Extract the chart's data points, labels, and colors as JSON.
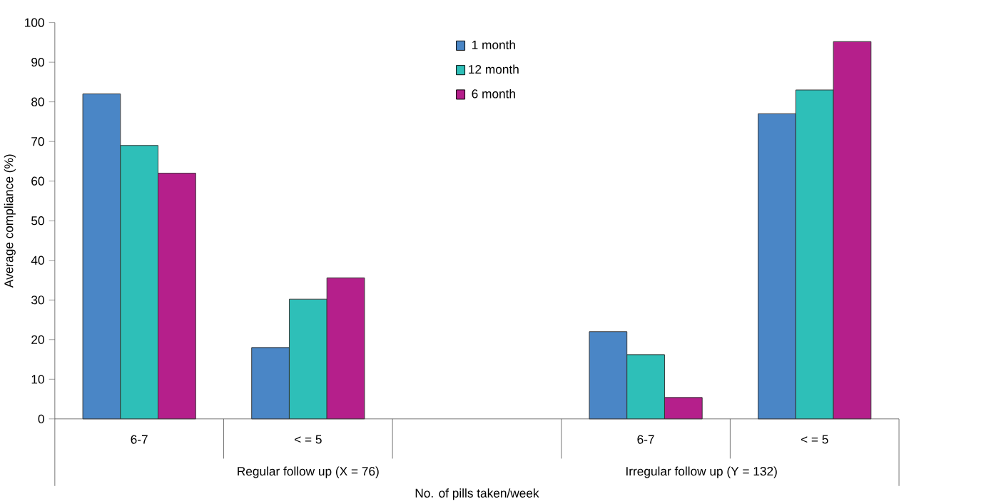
{
  "chart_data": {
    "type": "bar",
    "ylabel": "Average compliance (%)",
    "xlabel": "No. of pills taken/week",
    "categories": [
      "6-7",
      "< = 5",
      null,
      "6-7",
      "< = 5"
    ],
    "series": [
      {
        "name": "1 month",
        "color": "#4a86c6",
        "values": [
          82,
          18,
          null,
          22,
          77
        ]
      },
      {
        "name": "12 month",
        "color": "#2ebfb8",
        "values": [
          69,
          30.2,
          null,
          16.2,
          83
        ]
      },
      {
        "name": "6 month",
        "color": "#b51f8b",
        "values": [
          62,
          35.6,
          null,
          5.4,
          95.2
        ]
      }
    ],
    "annotations": [
      "Regular follow up (X = 76)",
      "Irregular follow up (Y = 132)"
    ],
    "ylim": [
      0,
      100
    ],
    "yticks": [
      0,
      10,
      20,
      30,
      40,
      50,
      60,
      70,
      80,
      90,
      100
    ],
    "legend": "top",
    "grid": false
  }
}
